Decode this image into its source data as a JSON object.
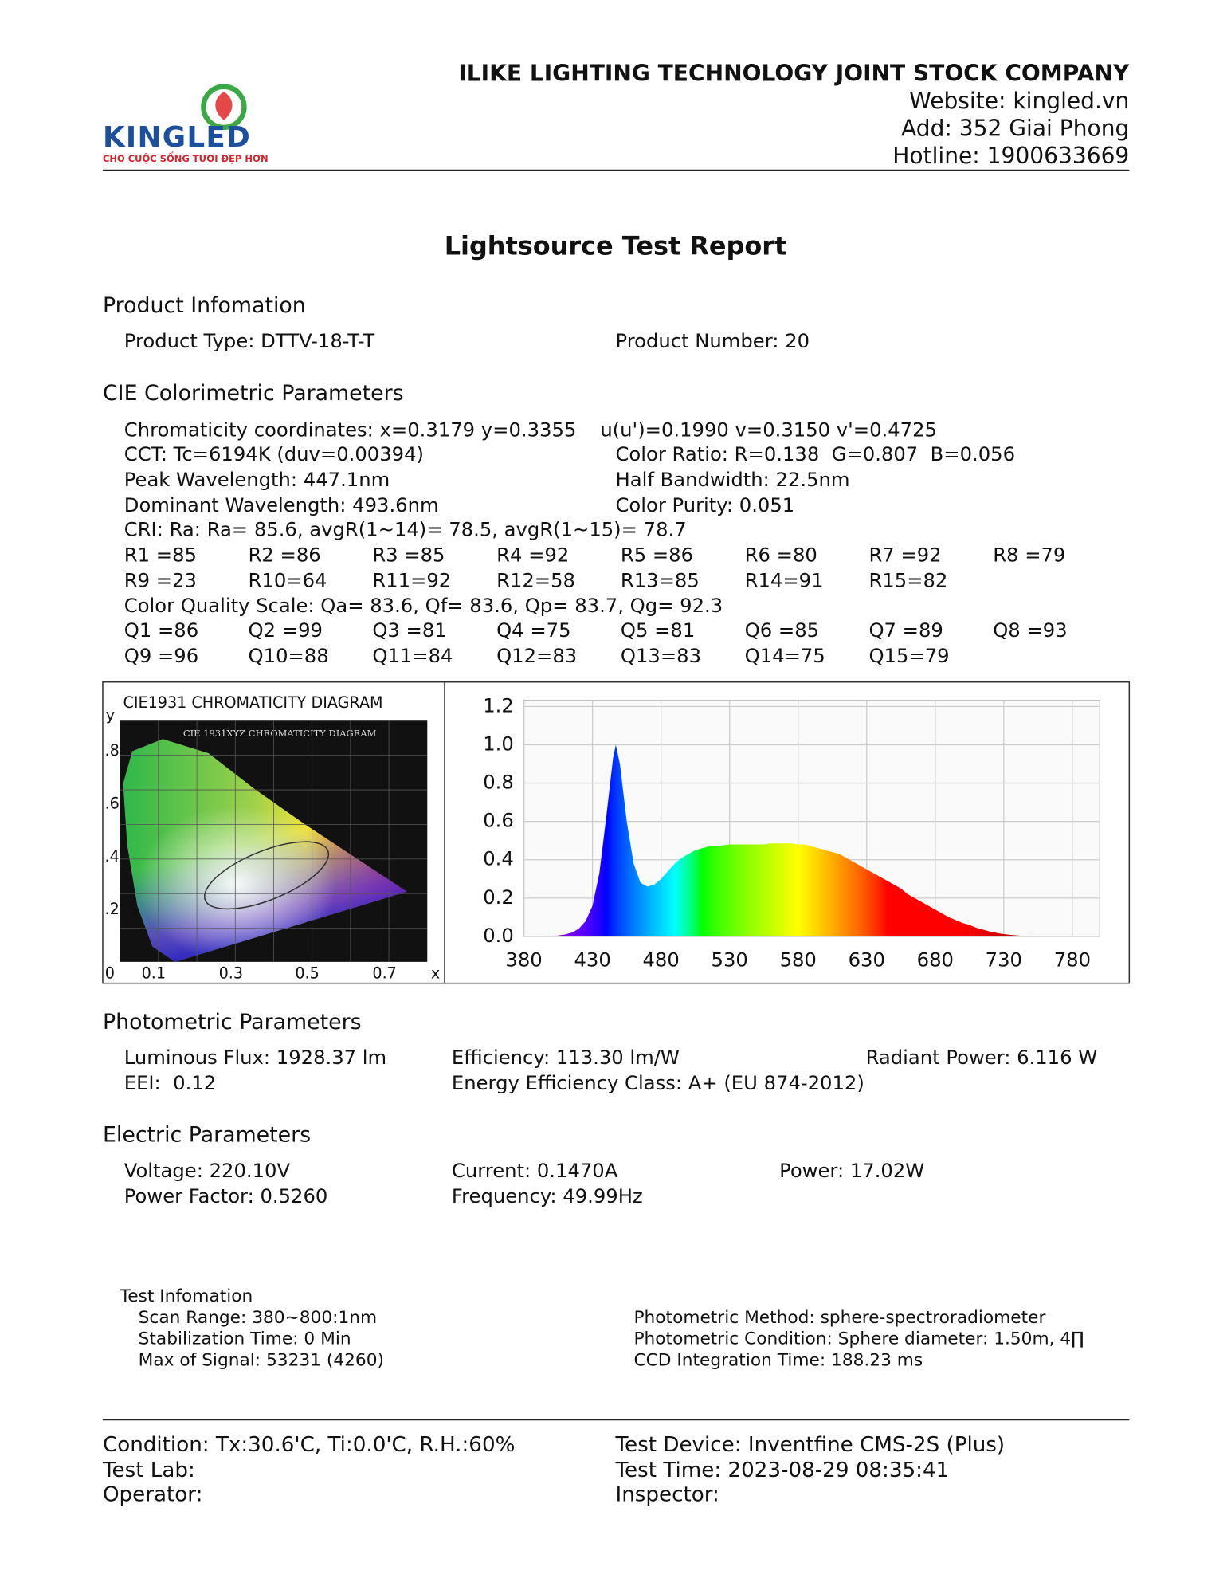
{
  "header": {
    "logo": "KINGLED",
    "slogan": "CHO CUỘC SỐNG TƯƠI ĐẸP HƠN",
    "company": "ILIKE LIGHTING TECHNOLOGY JOINT STOCK COMPANY",
    "website": "Website: kingled.vn",
    "address": "Add: 352 Giai Phong",
    "hotline": "Hotline: 1900633669"
  },
  "title": "Lightsource Test Report",
  "product_info": {
    "heading": "Product Infomation",
    "rows": [
      [
        "Product Type: DTTV-18-T-T",
        "Product Number: 20"
      ]
    ]
  },
  "cie_parameters": {
    "heading": "CIE Colorimetric Parameters",
    "rows": [
      [
        "Chromaticity coordinates: x=0.3179 y=0.3355",
        "u(u')=0.1990 v=0.3150 v'=0.4725"
      ],
      [
        "CCT: Tc=6194K (duv=0.00394)",
        "Color Ratio: R=0.138  G=0.807  B=0.056"
      ],
      [
        "Peak Wavelength: 447.1nm",
        "Half Bandwidth: 22.5nm"
      ],
      [
        "Dominant Wavelength: 493.6nm",
        "Color Purity: 0.051"
      ],
      [
        "CRI: Ra: Ra= 85.6, avgR(1~14)= 78.5, avgR(1~15)= 78.7"
      ],
      [
        "R1 =85",
        "R2 =86",
        "R3 =85",
        "R4 =92",
        "R5 =86",
        "R6 =80",
        "R7 =92",
        "R8 =79"
      ],
      [
        "R9 =23",
        "R10=64",
        "R11=92",
        "R12=58",
        "R13=85",
        "R14=91",
        "R15=82"
      ],
      [
        "Color Quality Scale: Qa= 83.6, Qf= 83.6, Qp= 83.7, Qg= 92.3"
      ],
      [
        "Q1 =86",
        "Q2 =99",
        "Q3 =81",
        "Q4 =75",
        "Q5 =81",
        "Q6 =85",
        "Q7 =89",
        "Q8 =93"
      ],
      [
        "Q9 =96",
        "Q10=88",
        "Q11=84",
        "Q12=83",
        "Q13=83",
        "Q14=75",
        "Q15=79"
      ]
    ]
  },
  "cie_diagram": {
    "title": "CIE1931 CHROMATICITY DIAGRAM",
    "image_title": "CIE 1931XYZ CHROMATICITY DIAGRAM",
    "y_label": "y",
    "x_label": "x",
    "y_tick_labels": [
      ".8",
      ".6",
      ".4",
      ".2"
    ],
    "x_tick_labels": [
      "0",
      "0.1",
      "0.3",
      "0.5",
      "0.7"
    ]
  },
  "chart_data": {
    "type": "area",
    "x": [
      400,
      405,
      410,
      415,
      420,
      425,
      430,
      435,
      440,
      445,
      447,
      450,
      455,
      460,
      465,
      470,
      475,
      480,
      485,
      490,
      495,
      500,
      505,
      510,
      515,
      520,
      525,
      530,
      535,
      540,
      545,
      550,
      555,
      560,
      565,
      570,
      575,
      580,
      585,
      590,
      595,
      600,
      605,
      610,
      615,
      620,
      625,
      630,
      635,
      640,
      645,
      650,
      655,
      660,
      665,
      670,
      675,
      680,
      685,
      690,
      695,
      700,
      705,
      710,
      715,
      720,
      725,
      730,
      735,
      740,
      745,
      750
    ],
    "values": [
      0,
      0.005,
      0.01,
      0.02,
      0.04,
      0.08,
      0.16,
      0.33,
      0.62,
      0.93,
      1.0,
      0.9,
      0.6,
      0.38,
      0.28,
      0.26,
      0.27,
      0.3,
      0.34,
      0.38,
      0.41,
      0.43,
      0.45,
      0.46,
      0.47,
      0.47,
      0.475,
      0.48,
      0.48,
      0.48,
      0.48,
      0.48,
      0.48,
      0.485,
      0.485,
      0.485,
      0.485,
      0.48,
      0.48,
      0.47,
      0.46,
      0.45,
      0.44,
      0.43,
      0.41,
      0.39,
      0.37,
      0.35,
      0.33,
      0.31,
      0.29,
      0.27,
      0.25,
      0.22,
      0.2,
      0.18,
      0.16,
      0.14,
      0.12,
      0.1,
      0.085,
      0.07,
      0.06,
      0.045,
      0.035,
      0.025,
      0.018,
      0.012,
      0.008,
      0.005,
      0.003,
      0
    ],
    "xlim": [
      380,
      800
    ],
    "ylim": [
      0,
      1.2
    ],
    "xticks": [
      380,
      430,
      480,
      530,
      580,
      630,
      680,
      730,
      780
    ],
    "yticks": [
      {
        "value": 0,
        "label": "0.0"
      },
      0.2,
      0.4,
      0.6,
      0.8,
      {
        "value": 1,
        "label": "1.0"
      },
      1.2
    ],
    "grid": true
  },
  "photometric": {
    "heading": "Photometric Parameters",
    "rows": [
      [
        "Luminous Flux: 1928.37 lm",
        "Efficiency: 113.30 lm/W",
        "Radiant Power: 6.116 W"
      ],
      [
        "EEI:  0.12",
        "Energy Efficiency Class: A+ (EU 874-2012)"
      ]
    ]
  },
  "electric": {
    "heading": "Electric Parameters",
    "rows": [
      [
        "Voltage: 220.10V",
        "Current: 0.1470A",
        "Power: 17.02W"
      ],
      [
        "Power Factor: 0.5260",
        "Frequency: 49.99Hz"
      ]
    ]
  },
  "test_info": {
    "heading": "Test Infomation",
    "rows": [
      [
        "Scan Range: 380~800:1nm",
        "Photometric Method: sphere-spectroradiometer"
      ],
      [
        "Stabilization Time: 0 Min",
        "Photometric Condition: Sphere diameter: 1.50m, 4∏"
      ],
      [
        "Max of Signal: 53231 (4260)",
        "CCD Integration Time: 188.23 ms"
      ]
    ]
  },
  "footer": {
    "rows": [
      [
        "Condition: Tx:30.6'C, Ti:0.0'C, R.H.:60%",
        "Test Device: Inventfine CMS-2S (Plus)"
      ],
      [
        "Test Lab:",
        "Test Time: 2023-08-29 08:35:41"
      ],
      [
        "Operator:",
        "Inspector:"
      ]
    ]
  }
}
